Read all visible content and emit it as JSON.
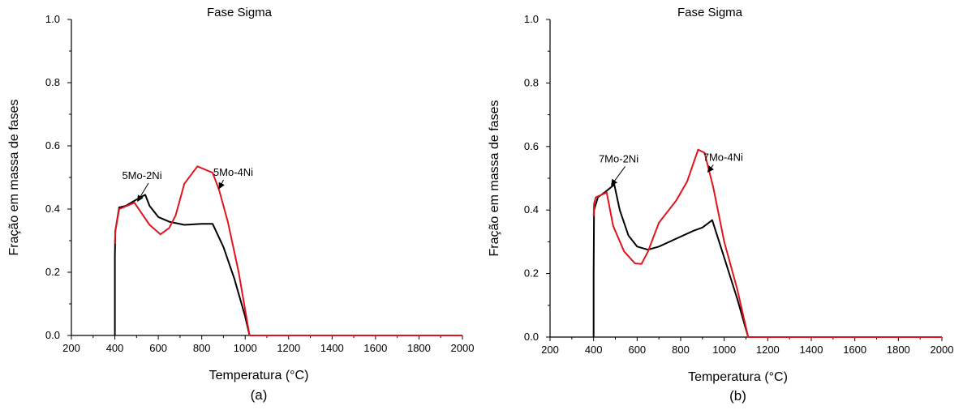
{
  "chart_data": [
    {
      "type": "line",
      "title": "Fase Sigma",
      "xlabel": "Temperatura (°C)",
      "ylabel": "Fração em massa de fases",
      "panel_label": "(a)",
      "xlim": [
        200,
        2000
      ],
      "ylim": [
        0,
        1.0
      ],
      "xticks": [
        200,
        400,
        600,
        800,
        1000,
        1200,
        1400,
        1600,
        1800,
        2000
      ],
      "yticks": [
        "0.0",
        "0.2",
        "0.4",
        "0.6",
        "0.8",
        "1.0"
      ],
      "series": [
        {
          "name": "5Mo-4Ni",
          "color": "#e0141e",
          "x": [
            400,
            402,
            420,
            490,
            520,
            560,
            610,
            650,
            680,
            720,
            780,
            850,
            880,
            920,
            970,
            1020,
            1100,
            1400,
            2000
          ],
          "y": [
            0.29,
            0.33,
            0.4,
            0.42,
            0.39,
            0.35,
            0.32,
            0.34,
            0.38,
            0.48,
            0.535,
            0.515,
            0.46,
            0.36,
            0.2,
            0.0,
            0.0,
            0.0,
            0.0
          ]
        },
        {
          "name": "5Mo-2Ni",
          "color": "#000000",
          "x": [
            400,
            400,
            402,
            420,
            450,
            500,
            540,
            560,
            600,
            650,
            720,
            800,
            850,
            900,
            950,
            1000,
            1020
          ],
          "y": [
            0.0,
            0.25,
            0.33,
            0.405,
            0.41,
            0.43,
            0.445,
            0.41,
            0.375,
            0.36,
            0.35,
            0.353,
            0.353,
            0.28,
            0.18,
            0.06,
            0.0
          ]
        }
      ],
      "annotations": [
        {
          "text": "5Mo-2Ni",
          "x": 525,
          "y": 0.495,
          "arrow_to": [
            505,
            0.425
          ]
        },
        {
          "text": "5Mo-4Ni",
          "x": 945,
          "y": 0.505,
          "arrow_to": [
            880,
            0.465
          ]
        }
      ]
    },
    {
      "type": "line",
      "title": "Fase Sigma",
      "xlabel": "Temperatura (°C)",
      "ylabel": "Fração em massa de fases",
      "panel_label": "(b)",
      "xlim": [
        200,
        2000
      ],
      "ylim": [
        0,
        1.0
      ],
      "xticks": [
        200,
        400,
        600,
        800,
        1000,
        1200,
        1400,
        1600,
        1800,
        2000
      ],
      "yticks": [
        "0.0",
        "0.2",
        "0.4",
        "0.6",
        "0.8",
        "1.0"
      ],
      "series": [
        {
          "name": "7Mo-4Ni",
          "color": "#e0141e",
          "x": [
            400,
            402,
            410,
            460,
            490,
            540,
            590,
            620,
            650,
            700,
            780,
            830,
            880,
            910,
            950,
            1000,
            1060,
            1110,
            1400,
            2000
          ],
          "y": [
            0.38,
            0.42,
            0.44,
            0.455,
            0.35,
            0.27,
            0.232,
            0.23,
            0.27,
            0.36,
            0.43,
            0.49,
            0.59,
            0.58,
            0.47,
            0.3,
            0.15,
            0.0,
            0.0,
            0.0
          ]
        },
        {
          "name": "7Mo-2Ni",
          "color": "#000000",
          "x": [
            400,
            400,
            402,
            420,
            450,
            495,
            520,
            560,
            600,
            650,
            700,
            780,
            860,
            900,
            945,
            1000,
            1060,
            1110
          ],
          "y": [
            0.0,
            0.2,
            0.4,
            0.44,
            0.455,
            0.48,
            0.4,
            0.32,
            0.285,
            0.275,
            0.285,
            0.31,
            0.335,
            0.345,
            0.368,
            0.25,
            0.12,
            0.0
          ]
        }
      ],
      "annotations": [
        {
          "text": "7Mo-2Ni",
          "x": 515,
          "y": 0.55,
          "arrow_to": [
            482,
            0.478
          ]
        },
        {
          "text": "7Mo-4Ni",
          "x": 995,
          "y": 0.555,
          "arrow_to": [
            925,
            0.52
          ]
        }
      ]
    }
  ]
}
